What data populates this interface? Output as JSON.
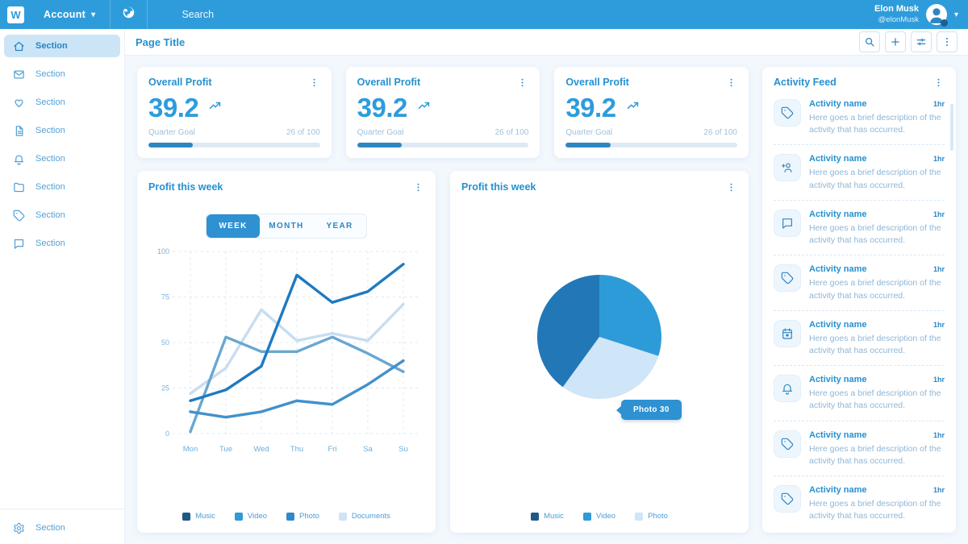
{
  "topbar": {
    "logo": "W",
    "account_label": "Account",
    "search_placeholder": "Search",
    "user_name": "Elon Musk",
    "user_handle": "@elonMusk"
  },
  "sidebar": {
    "items": [
      {
        "icon": "home",
        "label": "Section",
        "active": true
      },
      {
        "icon": "mail",
        "label": "Section",
        "active": false
      },
      {
        "icon": "heart",
        "label": "Section",
        "active": false
      },
      {
        "icon": "file",
        "label": "Section",
        "active": false
      },
      {
        "icon": "bell",
        "label": "Section",
        "active": false
      },
      {
        "icon": "folder",
        "label": "Section",
        "active": false
      },
      {
        "icon": "tag",
        "label": "Section",
        "active": false
      },
      {
        "icon": "chat",
        "label": "Section",
        "active": false
      }
    ],
    "footer_item": {
      "icon": "gear",
      "label": "Section"
    }
  },
  "page": {
    "title": "Page Title"
  },
  "colors": {
    "topbar": "#2e9cdb",
    "accent": "#2d9cdb",
    "title_blue": "#2591d0",
    "muted_blue": "#9fc2de"
  },
  "stats": {
    "cards": [
      {
        "title": "Overall Profit",
        "value": "39.2",
        "goal_label": "Quarter Goal",
        "goal_value": "26 of 100",
        "progress_pct": 26
      },
      {
        "title": "Overall Profit",
        "value": "39.2",
        "goal_label": "Quarter Goal",
        "goal_value": "26 of 100",
        "progress_pct": 26
      },
      {
        "title": "Overall Profit",
        "value": "39.2",
        "goal_label": "Quarter Goal",
        "goal_value": "26 of 100",
        "progress_pct": 26
      }
    ]
  },
  "chart_data": [
    {
      "type": "line",
      "title": "Profit this week",
      "tabs": [
        "WEEK",
        "MONTH",
        "YEAR"
      ],
      "active_tab": "WEEK",
      "x": [
        "Mon",
        "Tue",
        "Wed",
        "Thu",
        "Fri",
        "Sa",
        "Su"
      ],
      "ylim": [
        0,
        100
      ],
      "yticks": [
        0,
        25,
        50,
        75,
        100
      ],
      "grid": true,
      "legend_position": "bottom",
      "series": [
        {
          "name": "Music",
          "color": "#1f7ac0",
          "legend_color": "#1d5a86",
          "values": [
            18,
            24,
            37,
            87,
            72,
            78,
            93
          ]
        },
        {
          "name": "Video",
          "color": "#69a7d1",
          "legend_color": "#2f9ad5",
          "values": [
            1,
            53,
            45,
            45,
            53,
            44,
            34
          ]
        },
        {
          "name": "Photo",
          "color": "#4191cd",
          "legend_color": "#3289c9",
          "values": [
            12,
            9,
            12,
            18,
            16,
            27,
            40
          ]
        },
        {
          "name": "Documents",
          "color": "#c7ddf1",
          "legend_color": "#cfe3f5",
          "values": [
            22,
            36,
            68,
            51,
            55,
            51,
            71
          ]
        }
      ]
    },
    {
      "type": "pie",
      "title": "Profit this week",
      "slices": [
        {
          "name": "Video",
          "value": 30,
          "color": "#2e9bd9"
        },
        {
          "name": "Photo",
          "value": 30,
          "color": "#cfe5f8"
        },
        {
          "name": "Music",
          "value": 40,
          "color": "#2278b7"
        }
      ],
      "tooltip": {
        "text": "Photo 30"
      },
      "legend": [
        {
          "name": "Music",
          "color": "#1d5a86"
        },
        {
          "name": "Video",
          "color": "#2f9ad5"
        },
        {
          "name": "Photo",
          "color": "#cfe5f8"
        }
      ]
    }
  ],
  "activity_feed": {
    "title": "Activity Feed",
    "items": [
      {
        "icon": "tag",
        "name": "Activity name",
        "time": "1hr",
        "description": "Here goes a brief description of the activity that has occurred."
      },
      {
        "icon": "user-plus",
        "name": "Activity name",
        "time": "1hr",
        "description": "Here goes a brief description of the activity that has occurred."
      },
      {
        "icon": "chat",
        "name": "Activity name",
        "time": "1hr",
        "description": "Here goes a brief description of the activity that has occurred."
      },
      {
        "icon": "tag",
        "name": "Activity name",
        "time": "1hr",
        "description": "Here goes a brief description of the activity that has occurred."
      },
      {
        "icon": "calendar",
        "name": "Activity name",
        "time": "1hr",
        "description": "Here goes a brief description of the activity that has occurred."
      },
      {
        "icon": "bell",
        "name": "Activity name",
        "time": "1hr",
        "description": "Here goes a brief description of the activity that has occurred."
      },
      {
        "icon": "tag",
        "name": "Activity name",
        "time": "1hr",
        "description": "Here goes a brief description of the activity that has occurred."
      },
      {
        "icon": "tag",
        "name": "Activity name",
        "time": "1hr",
        "description": "Here goes a brief description of the activity that has occurred."
      }
    ]
  }
}
